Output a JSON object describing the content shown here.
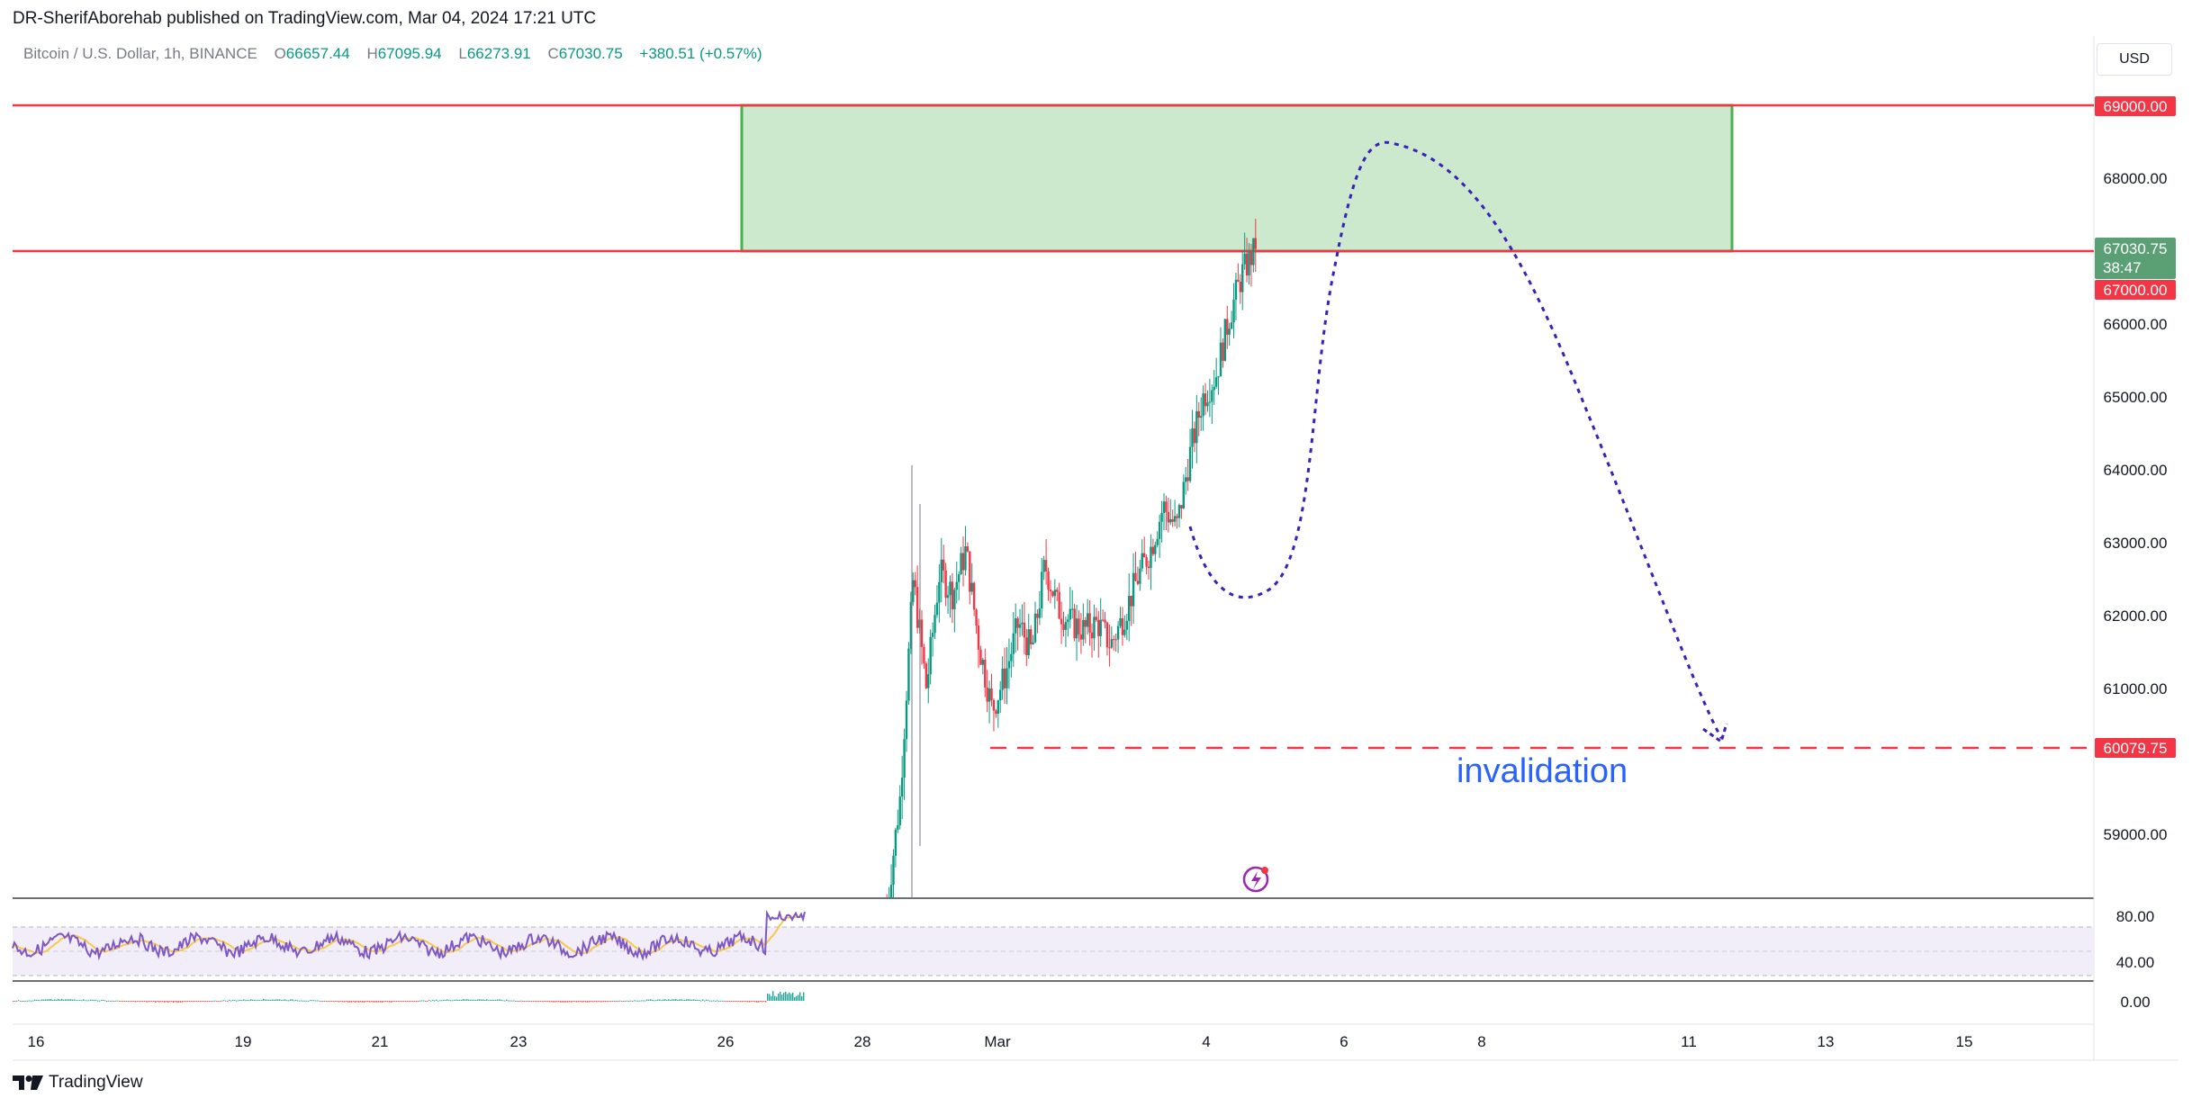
{
  "header": {
    "publisher": "DR-SherifAborehab published on TradingView.com, Mar 04, 2024 17:21 UTC"
  },
  "symbol": {
    "name": "Bitcoin / U.S. Dollar, 1h, BINANCE",
    "open_label": "O",
    "open": "66657.44",
    "high_label": "H",
    "high": "67095.94",
    "low_label": "L",
    "low": "66273.91",
    "close_label": "C",
    "close": "67030.75",
    "change": "+380.51 (+0.57%)"
  },
  "currency": "USD",
  "price_axis": {
    "ticks": [
      "68000.00",
      "66000.00",
      "65000.00",
      "64000.00",
      "63000.00",
      "62000.00",
      "61000.00",
      "59000.00"
    ],
    "badges": {
      "resistance_top": "69000.00",
      "last_price": "67030.75",
      "countdown": "38:47",
      "resistance_bottom": "67000.00",
      "invalidation": "60079.75"
    }
  },
  "rsi_axis": {
    "upper": "80.00",
    "lower": "40.00"
  },
  "macd_axis": {
    "zero": "0.00"
  },
  "time_axis": [
    "16",
    "19",
    "21",
    "23",
    "26",
    "28",
    "Mar",
    "4",
    "6",
    "8",
    "11",
    "13",
    "15"
  ],
  "annotations": {
    "invalidation": "invalidation"
  },
  "footer": {
    "brand": "TradingView"
  },
  "colors": {
    "bull": "#089981",
    "bear": "#f23645",
    "line_red": "#f23645",
    "zone_fill": "#c8e6c9",
    "zone_border": "#43a047",
    "forecast": "#3a1fb8",
    "rsi": "#7e57c2",
    "rsi_ma": "#f7c948",
    "label_blue": "#2962ff"
  },
  "chart_data": {
    "type": "candlestick",
    "price_range": [
      58000,
      70500
    ],
    "zone": {
      "from": 67000,
      "to": 69000,
      "start": "Feb 26",
      "end": "Mar 11"
    },
    "levels": [
      69000,
      67000,
      60079.75
    ],
    "forecast_path": [
      [
        63000,
        "Mar 4"
      ],
      [
        62200,
        "Mar 4"
      ],
      [
        68500,
        "Mar 6"
      ],
      [
        60100,
        "Mar 11"
      ]
    ],
    "price_path": [
      [
        58000,
        "Feb 28"
      ],
      [
        59500,
        "Feb 28"
      ],
      [
        62500,
        "Feb 28"
      ],
      [
        61000,
        "Feb 28"
      ],
      [
        62600,
        "Feb 29"
      ],
      [
        62300,
        "Feb 29"
      ],
      [
        62900,
        "Feb 29"
      ],
      [
        61600,
        "Mar 1"
      ],
      [
        60700,
        "Mar 1"
      ],
      [
        61200,
        "Mar 1"
      ],
      [
        61900,
        "Mar 2"
      ],
      [
        61500,
        "Mar 2"
      ],
      [
        62700,
        "Mar 2"
      ],
      [
        62100,
        "Mar 2"
      ],
      [
        61900,
        "Mar 3"
      ],
      [
        61800,
        "Mar 3"
      ],
      [
        61900,
        "Mar 3"
      ],
      [
        61600,
        "Mar 3"
      ],
      [
        62000,
        "Mar 3"
      ],
      [
        62500,
        "Mar 4"
      ],
      [
        62900,
        "Mar 4"
      ],
      [
        63500,
        "Mar 4"
      ],
      [
        63200,
        "Mar 4"
      ],
      [
        64200,
        "Mar 4"
      ],
      [
        65000,
        "Mar 4"
      ],
      [
        65300,
        "Mar 4"
      ],
      [
        66100,
        "Mar 4"
      ],
      [
        66700,
        "Mar 4"
      ],
      [
        67030.75,
        "Mar 4"
      ]
    ]
  }
}
